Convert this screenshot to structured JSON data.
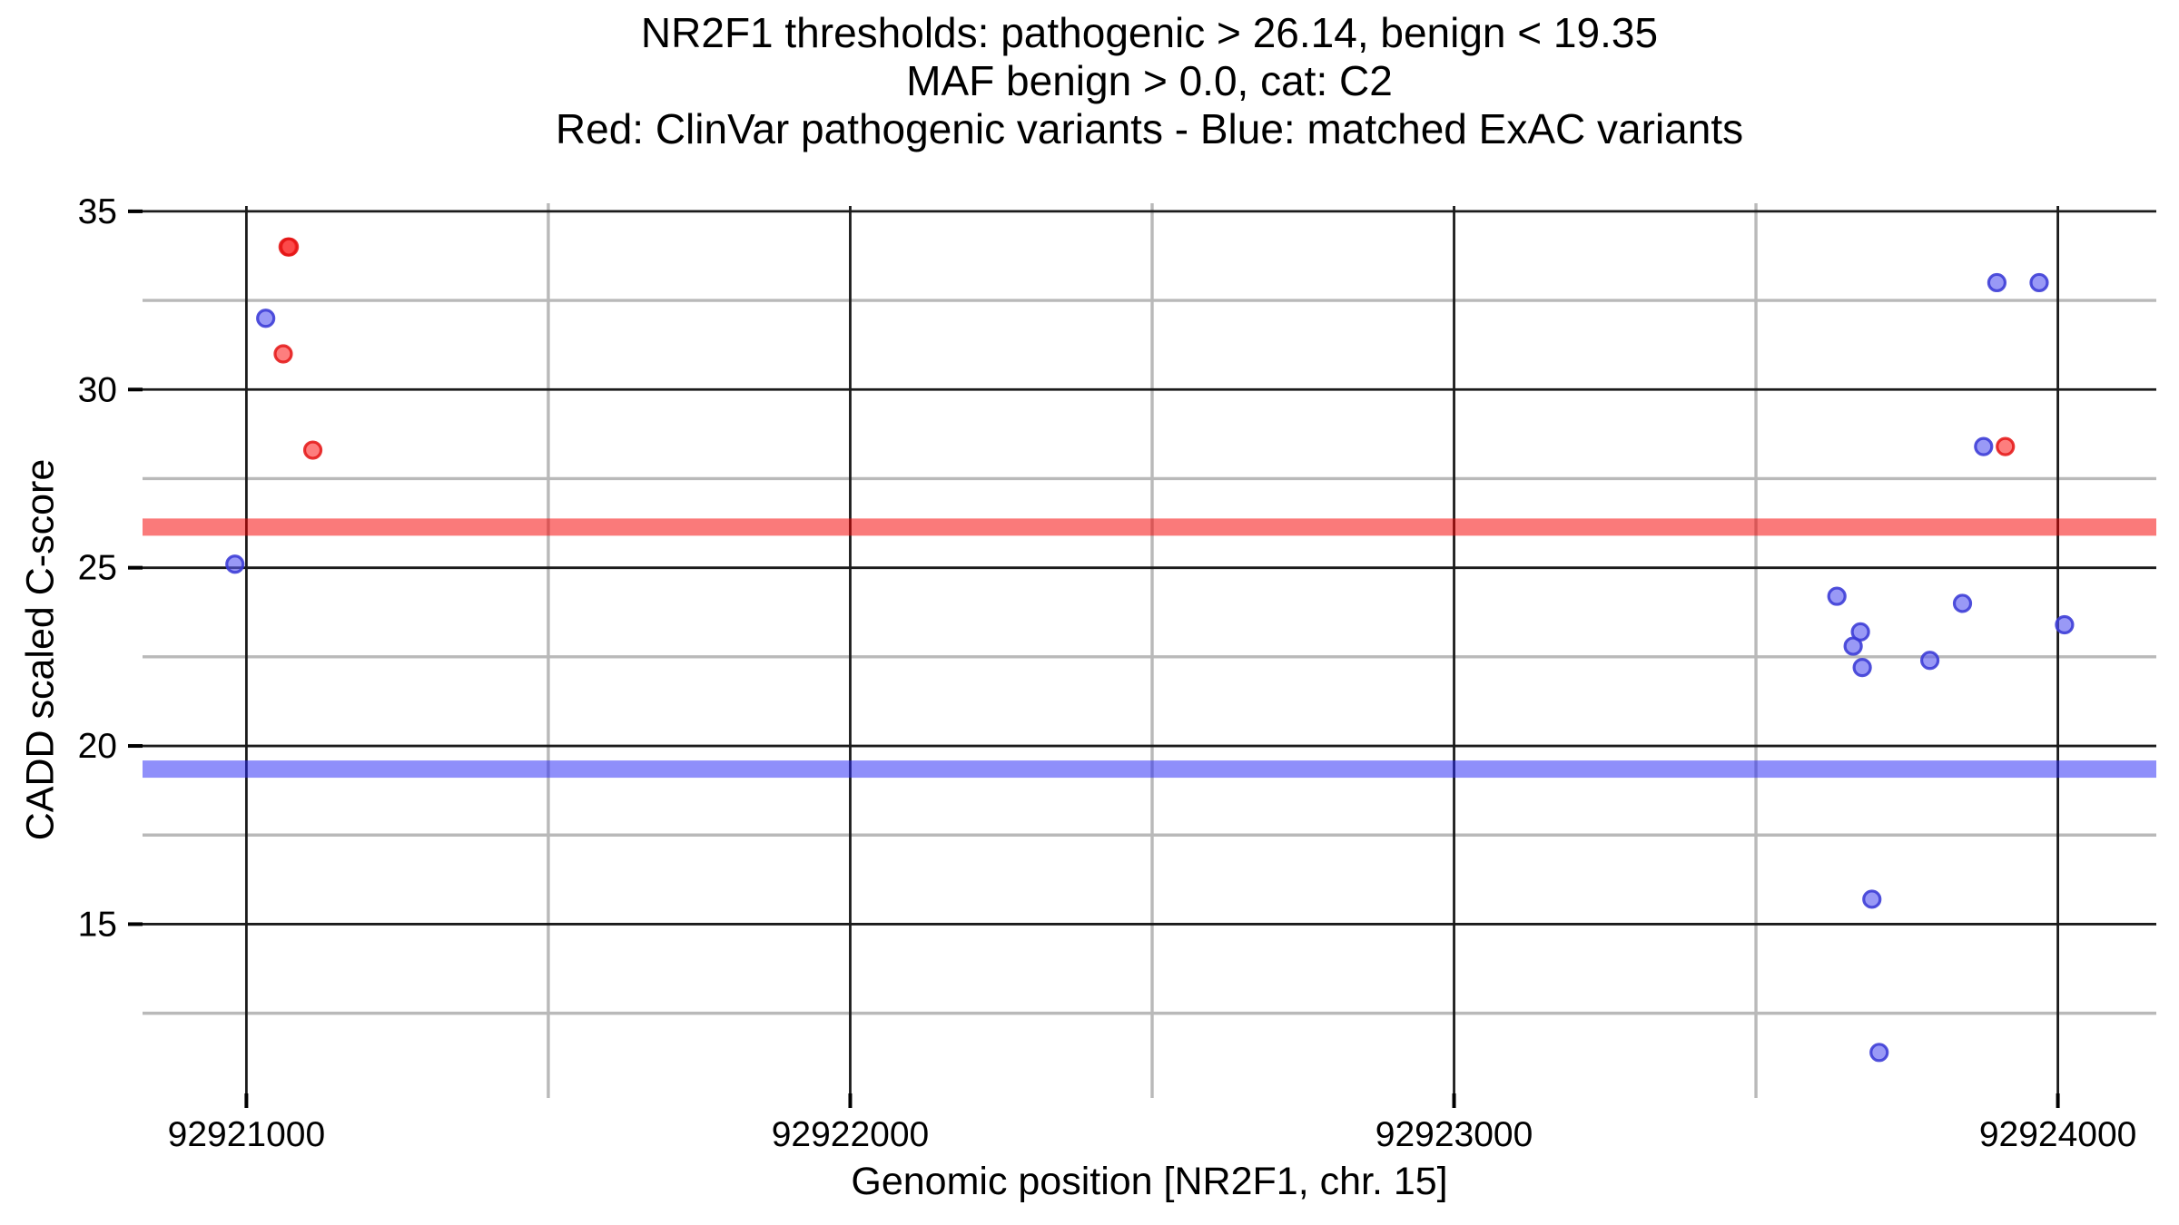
{
  "title": {
    "line1": "NR2F1 thresholds: pathogenic > 26.14, benign < 19.35",
    "line2": "MAF benign > 0.0, cat: C2",
    "line3": "Red: ClinVar pathogenic variants - Blue: matched ExAC variants"
  },
  "chart_data": {
    "type": "scatter",
    "title": "NR2F1 thresholds: pathogenic > 26.14, benign < 19.35 | MAF benign > 0.0, cat: C2 | Red: ClinVar pathogenic variants - Blue: matched ExAC variants",
    "xlabel": "Genomic position [NR2F1, chr. 15]",
    "ylabel": "CADD scaled C-score",
    "x_axis": {
      "range": [
        92920828,
        92924163
      ],
      "major_ticks": [
        92921000,
        92922000,
        92923000,
        92924000
      ],
      "major_tick_labels": [
        "92921000",
        "92922000",
        "92923000",
        "92924000"
      ],
      "minor_ticks": [
        92921500,
        92922500,
        92923500
      ]
    },
    "y_axis": {
      "range": [
        10.25,
        35.15
      ],
      "major_ticks": [
        35,
        30,
        25,
        20,
        15
      ],
      "major_tick_labels": [
        "35",
        "30",
        "25",
        "20",
        "15"
      ],
      "minor_ticks": [
        32.5,
        27.5,
        22.5,
        17.5,
        12.5
      ]
    },
    "grid": {
      "major_color": "#1b1b1b",
      "minor_color": "#b9b9b9"
    },
    "thresholds": [
      {
        "name": "pathogenic",
        "value": 26.14,
        "color": "rgba(246,0,0,0.52)"
      },
      {
        "name": "benign",
        "value": 19.35,
        "color": "rgba(40,40,246,0.52)"
      }
    ],
    "series": [
      {
        "name": "ClinVar pathogenic variants",
        "color": "#ff0000",
        "fill": "rgba(252,40,40,0.60)",
        "stroke": "rgba(228,20,20,0.85)",
        "points": [
          {
            "x": 92921069,
            "y": 34.0
          },
          {
            "x": 92921071,
            "y": 34.0
          },
          {
            "x": 92921061,
            "y": 31.0
          },
          {
            "x": 92921110,
            "y": 28.3
          },
          {
            "x": 92923913,
            "y": 28.4
          }
        ]
      },
      {
        "name": "matched ExAC variants",
        "color": "#0000ff",
        "fill": "rgba(90,90,240,0.62)",
        "stroke": "rgba(58,58,214,0.88)",
        "points": [
          {
            "x": 92920981,
            "y": 25.1
          },
          {
            "x": 92921032,
            "y": 32.0
          },
          {
            "x": 92923634,
            "y": 24.2
          },
          {
            "x": 92923661,
            "y": 22.8
          },
          {
            "x": 92923673,
            "y": 23.2
          },
          {
            "x": 92923676,
            "y": 22.2
          },
          {
            "x": 92923692,
            "y": 15.7
          },
          {
            "x": 92923704,
            "y": 11.4
          },
          {
            "x": 92923788,
            "y": 22.4
          },
          {
            "x": 92923842,
            "y": 24.0
          },
          {
            "x": 92923877,
            "y": 28.4
          },
          {
            "x": 92923899,
            "y": 33.0
          },
          {
            "x": 92923969,
            "y": 33.0
          },
          {
            "x": 92924011,
            "y": 23.4
          }
        ]
      }
    ],
    "legend_position": "none"
  }
}
